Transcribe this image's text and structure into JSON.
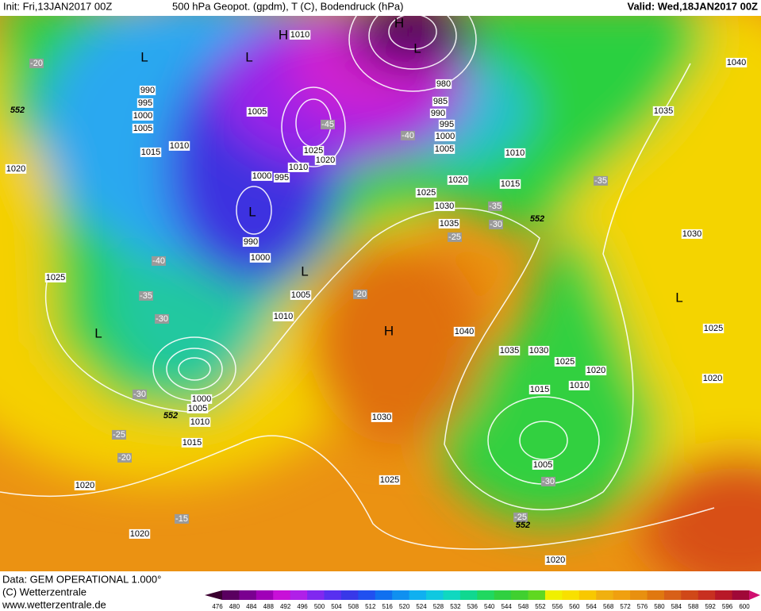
{
  "header": {
    "init": "Init: Fri,13JAN2017 00Z",
    "title": "500 hPa Geopot. (gpdm), T (C), Bodendruck (hPa)",
    "valid": "Valid: Wed,18JAN2017 00Z"
  },
  "footer": {
    "data": "Data: GEM OPERATIONAL 1.000°",
    "copyright": "(C) Wetterzentrale",
    "url": "www.wetterzentrale.de"
  },
  "colorbar": {
    "labels": [
      476,
      480,
      484,
      488,
      492,
      496,
      500,
      504,
      508,
      512,
      516,
      520,
      524,
      528,
      532,
      536,
      540,
      544,
      548,
      552,
      556,
      560,
      564,
      568,
      572,
      576,
      580,
      584,
      588,
      592,
      596,
      600
    ]
  },
  "isobar_labels": [
    "1010",
    "990",
    "995",
    "1000",
    "1005",
    "1015",
    "1010",
    "1020",
    "1025",
    "1005",
    "1025",
    "1020",
    "1010",
    "1000",
    "995",
    "990",
    "1000",
    "1005",
    "1010",
    "980",
    "985",
    "990",
    "995",
    "1000",
    "1005",
    "1010",
    "1020",
    "1015",
    "1025",
    "1030",
    "1035",
    "1035",
    "1040",
    "1030",
    "1025",
    "1020",
    "1040",
    "1035",
    "1030",
    "1025",
    "1020",
    "1015",
    "1010",
    "1000",
    "1005",
    "1010",
    "1015",
    "1030",
    "1025",
    "1005",
    "1020",
    "1020",
    "1020"
  ],
  "temperature_labels": [
    "-20",
    "-45",
    "-40",
    "-35",
    "-35",
    "-30",
    "-25",
    "-40",
    "-35",
    "-30",
    "-20",
    "-30",
    "-25",
    "-20",
    "-15",
    "-30",
    "-25"
  ],
  "height_labels": [
    "552",
    "552",
    "552",
    "552"
  ],
  "pressure_centers": [
    "H",
    "H",
    "L",
    "L",
    "L",
    "L",
    "L",
    "L",
    "H",
    "L"
  ]
}
